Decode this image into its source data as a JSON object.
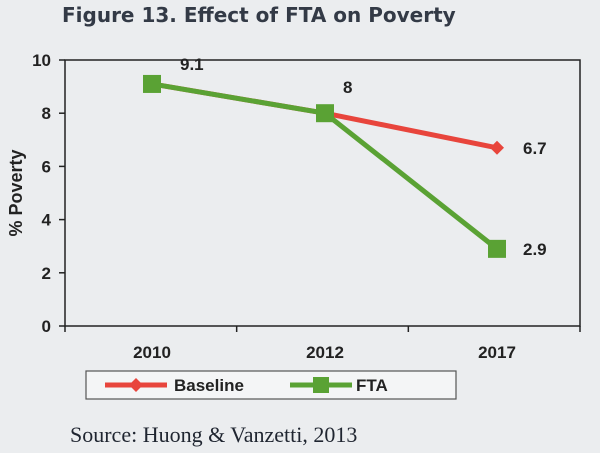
{
  "figure": {
    "title": "Figure 13. Effect of FTA on Poverty",
    "source": "Source: Huong & Vanzetti, 2013"
  },
  "chart_data": {
    "type": "line",
    "title": "",
    "categories": [
      "2010",
      "2012",
      "2017"
    ],
    "xlabel": "",
    "ylabel": "% Poverty",
    "ylim": [
      0,
      10
    ],
    "yticks": [
      0,
      2,
      4,
      6,
      8,
      10
    ],
    "grid": false,
    "legend_position": "bottom",
    "series": [
      {
        "name": "Baseline",
        "values": [
          9.1,
          8,
          6.7
        ],
        "color": "#e8453c",
        "marker": "diamond"
      },
      {
        "name": "FTA",
        "values": [
          9.1,
          8,
          2.9
        ],
        "color": "#5aa234",
        "marker": "square"
      }
    ],
    "data_labels": [
      {
        "category": "2010",
        "value": "9.1"
      },
      {
        "category": "2012",
        "value": "8"
      },
      {
        "category": "2017",
        "value": "6.7"
      },
      {
        "category": "2017",
        "value": "2.9"
      }
    ]
  }
}
